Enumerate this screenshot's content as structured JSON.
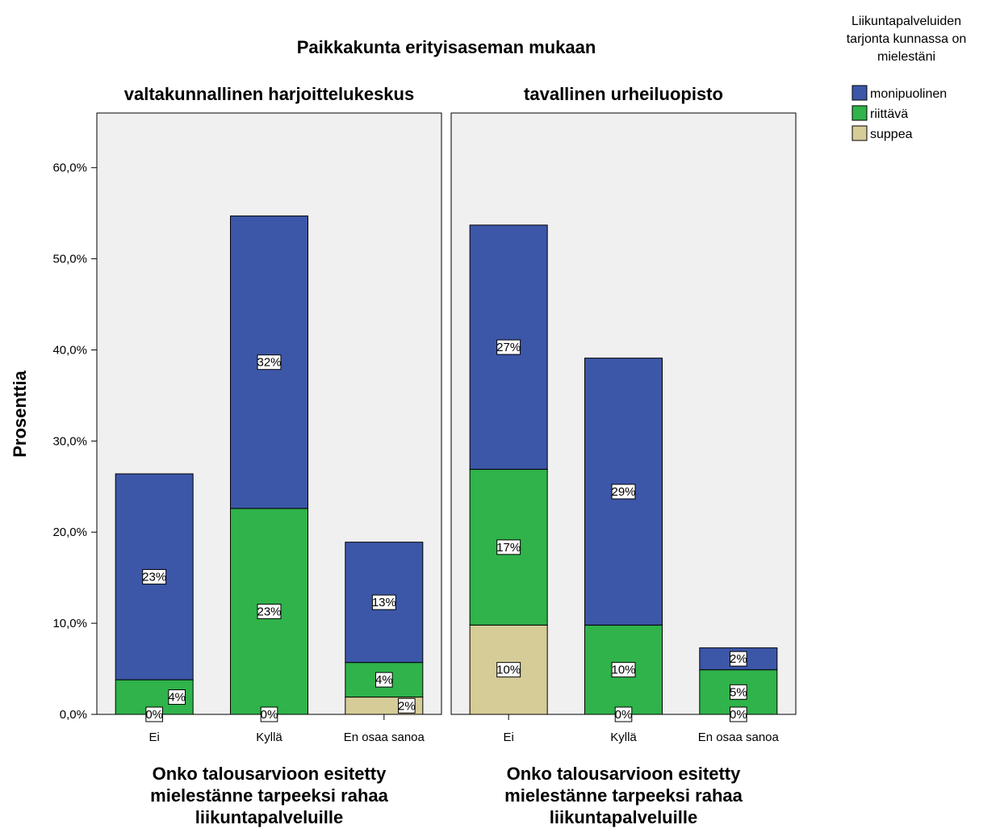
{
  "chart_data": {
    "type": "bar",
    "stacked": true,
    "title": "Paikkakunta erityisaseman mukaan",
    "ylabel": "Prosenttia",
    "xlabel": [
      "Onko talousarvioon esitetty",
      "mielestänne tarpeeksi rahaa",
      "liikuntapalveluille"
    ],
    "ylim": [
      0,
      66
    ],
    "yticks": [
      0,
      10,
      20,
      30,
      40,
      50,
      60
    ],
    "ytick_labels": [
      "0,0%",
      "10,0%",
      "20,0%",
      "30,0%",
      "40,0%",
      "50,0%",
      "60,0%"
    ],
    "categories": [
      "Ei",
      "Kyllä",
      "En osaa sanoa"
    ],
    "legend": {
      "title": [
        "Liikuntapalveluiden",
        "tarjonta kunnassa on",
        "mielestäni"
      ],
      "position": "top-right",
      "items": [
        {
          "name": "monipuolinen",
          "color": "#3c57a8"
        },
        {
          "name": "riittävä",
          "color": "#2fb34a"
        },
        {
          "name": "suppea",
          "color": "#d6cc98"
        }
      ]
    },
    "panels": [
      {
        "title": "valtakunnallinen harjoittelukeskus",
        "series": [
          {
            "name": "suppea",
            "color": "#d6cc98",
            "values": [
              0,
              0,
              1.9
            ],
            "labels": [
              "0%",
              "0%",
              "2%"
            ]
          },
          {
            "name": "riittävä",
            "color": "#2fb34a",
            "values": [
              3.8,
              22.6,
              3.8
            ],
            "labels": [
              "4%",
              "23%",
              "4%"
            ]
          },
          {
            "name": "monipuolinen",
            "color": "#3c57a8",
            "values": [
              22.6,
              32.1,
              13.2
            ],
            "labels": [
              "23%",
              "32%",
              "13%"
            ]
          }
        ]
      },
      {
        "title": "tavallinen urheiluopisto",
        "series": [
          {
            "name": "suppea",
            "color": "#d6cc98",
            "values": [
              9.8,
              0,
              0
            ],
            "labels": [
              "10%",
              "0%",
              "0%"
            ]
          },
          {
            "name": "riittävä",
            "color": "#2fb34a",
            "values": [
              17.1,
              9.8,
              4.9
            ],
            "labels": [
              "17%",
              "10%",
              "5%"
            ]
          },
          {
            "name": "monipuolinen",
            "color": "#3c57a8",
            "values": [
              26.8,
              29.3,
              2.4
            ],
            "labels": [
              "27%",
              "29%",
              "2%"
            ]
          }
        ]
      }
    ]
  }
}
